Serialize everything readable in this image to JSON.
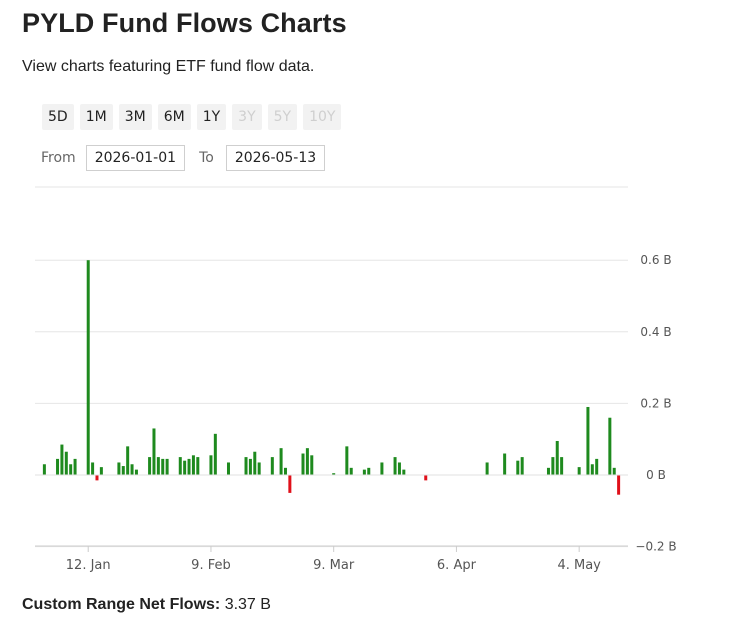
{
  "header": {
    "title": "PYLD Fund Flows Charts",
    "subtitle": "View charts featuring ETF fund flow data."
  },
  "range_buttons": [
    {
      "label": "5D",
      "enabled": true
    },
    {
      "label": "1M",
      "enabled": true
    },
    {
      "label": "3M",
      "enabled": true
    },
    {
      "label": "6M",
      "enabled": true
    },
    {
      "label": "1Y",
      "enabled": true
    },
    {
      "label": "3Y",
      "enabled": false
    },
    {
      "label": "5Y",
      "enabled": false
    },
    {
      "label": "10Y",
      "enabled": false
    }
  ],
  "date_range": {
    "from_label": "From",
    "from_value": "2026-01-01",
    "to_label": "To",
    "to_value": "2026-05-13"
  },
  "footer": {
    "label": "Custom Range Net Flows:",
    "value": "3.37 B"
  },
  "colors": {
    "positive": "#1e8a1e",
    "negative": "#e0101a",
    "grid": "#e6e6e6",
    "axis": "#cccccc"
  },
  "chart_data": {
    "type": "bar",
    "ylabel": "",
    "xlabel": "",
    "y_unit": "B",
    "ylim": [
      -0.2,
      0.8
    ],
    "y_ticks": [
      {
        "value": 0.6,
        "label": "0.6 B"
      },
      {
        "value": 0.4,
        "label": "0.4 B"
      },
      {
        "value": 0.2,
        "label": "0.2 B"
      },
      {
        "value": 0,
        "label": "0 B"
      },
      {
        "value": -0.2,
        "label": "−0.2 B"
      }
    ],
    "x_range": [
      "2026-01-01",
      "2026-05-14"
    ],
    "x_ticks": [
      {
        "date": "2026-01-12",
        "label": "12. Jan"
      },
      {
        "date": "2026-02-09",
        "label": "9. Feb"
      },
      {
        "date": "2026-03-09",
        "label": "9. Mar"
      },
      {
        "date": "2026-04-06",
        "label": "6. Apr"
      },
      {
        "date": "2026-05-04",
        "label": "4. May"
      }
    ],
    "points": [
      {
        "date": "2026-01-02",
        "value": 0.03
      },
      {
        "date": "2026-01-05",
        "value": 0.045
      },
      {
        "date": "2026-01-06",
        "value": 0.085
      },
      {
        "date": "2026-01-07",
        "value": 0.065
      },
      {
        "date": "2026-01-08",
        "value": 0.03
      },
      {
        "date": "2026-01-09",
        "value": 0.045
      },
      {
        "date": "2026-01-12",
        "value": 0.6
      },
      {
        "date": "2026-01-13",
        "value": 0.035
      },
      {
        "date": "2026-01-14",
        "value": -0.015
      },
      {
        "date": "2026-01-15",
        "value": 0.022
      },
      {
        "date": "2026-01-19",
        "value": 0.035
      },
      {
        "date": "2026-01-20",
        "value": 0.025
      },
      {
        "date": "2026-01-21",
        "value": 0.08
      },
      {
        "date": "2026-01-22",
        "value": 0.03
      },
      {
        "date": "2026-01-23",
        "value": 0.015
      },
      {
        "date": "2026-01-26",
        "value": 0.05
      },
      {
        "date": "2026-01-27",
        "value": 0.13
      },
      {
        "date": "2026-01-28",
        "value": 0.05
      },
      {
        "date": "2026-01-29",
        "value": 0.045
      },
      {
        "date": "2026-01-30",
        "value": 0.045
      },
      {
        "date": "2026-02-02",
        "value": 0.05
      },
      {
        "date": "2026-02-03",
        "value": 0.04
      },
      {
        "date": "2026-02-04",
        "value": 0.045
      },
      {
        "date": "2026-02-05",
        "value": 0.055
      },
      {
        "date": "2026-02-06",
        "value": 0.05
      },
      {
        "date": "2026-02-09",
        "value": 0.055
      },
      {
        "date": "2026-02-10",
        "value": 0.115
      },
      {
        "date": "2026-02-13",
        "value": 0.035
      },
      {
        "date": "2026-02-17",
        "value": 0.05
      },
      {
        "date": "2026-02-18",
        "value": 0.045
      },
      {
        "date": "2026-02-19",
        "value": 0.065
      },
      {
        "date": "2026-02-20",
        "value": 0.035
      },
      {
        "date": "2026-02-23",
        "value": 0.05
      },
      {
        "date": "2026-02-25",
        "value": 0.075
      },
      {
        "date": "2026-02-26",
        "value": 0.02
      },
      {
        "date": "2026-02-27",
        "value": -0.05
      },
      {
        "date": "2026-03-02",
        "value": 0.06
      },
      {
        "date": "2026-03-03",
        "value": 0.075
      },
      {
        "date": "2026-03-04",
        "value": 0.055
      },
      {
        "date": "2026-03-09",
        "value": 0.005
      },
      {
        "date": "2026-03-12",
        "value": 0.08
      },
      {
        "date": "2026-03-13",
        "value": 0.02
      },
      {
        "date": "2026-03-16",
        "value": 0.015
      },
      {
        "date": "2026-03-17",
        "value": 0.02
      },
      {
        "date": "2026-03-20",
        "value": 0.035
      },
      {
        "date": "2026-03-23",
        "value": 0.05
      },
      {
        "date": "2026-03-24",
        "value": 0.035
      },
      {
        "date": "2026-03-25",
        "value": 0.015
      },
      {
        "date": "2026-03-30",
        "value": -0.015
      },
      {
        "date": "2026-04-13",
        "value": 0.035
      },
      {
        "date": "2026-04-17",
        "value": 0.06
      },
      {
        "date": "2026-04-20",
        "value": 0.04
      },
      {
        "date": "2026-04-21",
        "value": 0.05
      },
      {
        "date": "2026-04-27",
        "value": 0.02
      },
      {
        "date": "2026-04-28",
        "value": 0.05
      },
      {
        "date": "2026-04-29",
        "value": 0.095
      },
      {
        "date": "2026-04-30",
        "value": 0.05
      },
      {
        "date": "2026-05-04",
        "value": 0.022
      },
      {
        "date": "2026-05-06",
        "value": 0.19
      },
      {
        "date": "2026-05-07",
        "value": 0.03
      },
      {
        "date": "2026-05-08",
        "value": 0.045
      },
      {
        "date": "2026-05-11",
        "value": 0.16
      },
      {
        "date": "2026-05-12",
        "value": 0.02
      },
      {
        "date": "2026-05-13",
        "value": -0.055
      }
    ]
  }
}
